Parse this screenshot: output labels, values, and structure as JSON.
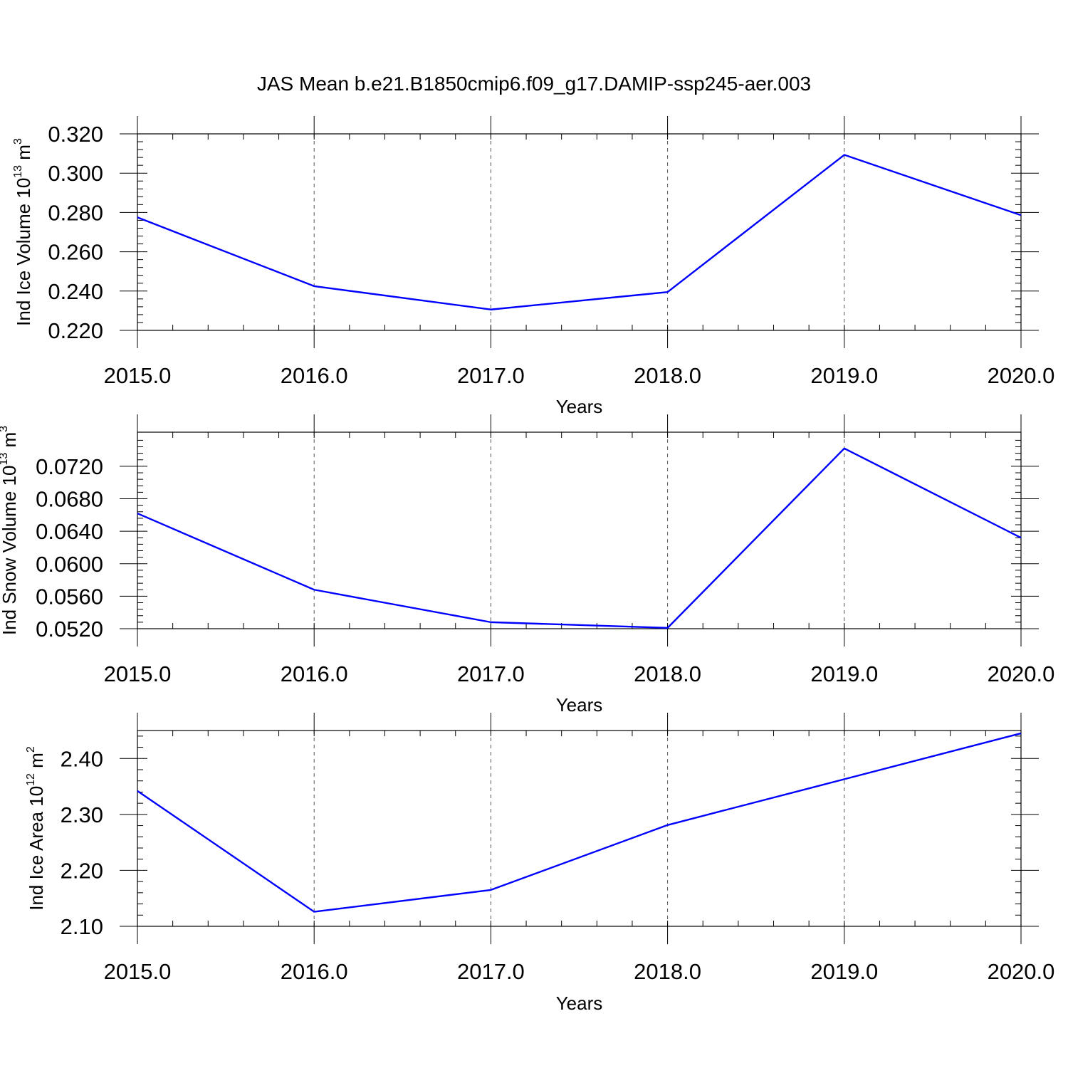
{
  "title": "JAS Mean b.e21.B1850cmip6.f09_g17.DAMIP-ssp245-aer.003",
  "line_color": "#0000ff",
  "chart_data": [
    {
      "type": "line",
      "xlabel": "Years",
      "ylabel_main": "Ind Ice Volume 10",
      "ylabel_exp": "13",
      "ylabel_unit": " m",
      "ylabel_unit_exp": "3",
      "xlim": [
        2015,
        2020
      ],
      "ylim": [
        0.22,
        0.32
      ],
      "x_ticks": [
        2015,
        2016,
        2017,
        2018,
        2019,
        2020
      ],
      "x_tick_labels": [
        "2015.0",
        "2016.0",
        "2017.0",
        "2018.0",
        "2019.0",
        "2020.0"
      ],
      "y_ticks": [
        0.22,
        0.24,
        0.26,
        0.28,
        0.3,
        0.32
      ],
      "y_tick_labels": [
        "0.220",
        "0.240",
        "0.260",
        "0.280",
        "0.300",
        "0.320"
      ],
      "y_minor_step": 0.004,
      "grid": "vertical dashed at major x ticks",
      "series": [
        {
          "x": [
            2015,
            2016,
            2017,
            2018,
            2019,
            2020
          ],
          "values": [
            0.2775,
            0.2425,
            0.2306,
            0.2395,
            0.3093,
            0.2786
          ]
        }
      ]
    },
    {
      "type": "line",
      "xlabel": "Years",
      "ylabel_main": "Ind Snow Volume 10",
      "ylabel_exp": "13",
      "ylabel_unit": " m",
      "ylabel_unit_exp": "3",
      "xlim": [
        2015,
        2020
      ],
      "ylim": [
        0.052,
        0.0762
      ],
      "x_ticks": [
        2015,
        2016,
        2017,
        2018,
        2019,
        2020
      ],
      "x_tick_labels": [
        "2015.0",
        "2016.0",
        "2017.0",
        "2018.0",
        "2019.0",
        "2020.0"
      ],
      "y_ticks": [
        0.052,
        0.056,
        0.06,
        0.064,
        0.068,
        0.072
      ],
      "y_tick_labels": [
        "0.0520",
        "0.0560",
        "0.0600",
        "0.0640",
        "0.0680",
        "0.0720"
      ],
      "y_minor_step": 0.0008,
      "grid": "vertical dashed at major x ticks",
      "series": [
        {
          "x": [
            2015,
            2016,
            2017,
            2018,
            2019,
            2020
          ],
          "values": [
            0.0662,
            0.0568,
            0.0528,
            0.0521,
            0.0742,
            0.0632
          ]
        }
      ]
    },
    {
      "type": "line",
      "xlabel": "Years",
      "ylabel_main": "Ind Ice Area 10",
      "ylabel_exp": "12",
      "ylabel_unit": " m",
      "ylabel_unit_exp": "2",
      "xlim": [
        2015,
        2020
      ],
      "ylim": [
        2.1,
        2.45
      ],
      "x_ticks": [
        2015,
        2016,
        2017,
        2018,
        2019,
        2020
      ],
      "x_tick_labels": [
        "2015.0",
        "2016.0",
        "2017.0",
        "2018.0",
        "2019.0",
        "2020.0"
      ],
      "y_ticks": [
        2.1,
        2.2,
        2.3,
        2.4
      ],
      "y_tick_labels": [
        "2.10",
        "2.20",
        "2.30",
        "2.40"
      ],
      "y_minor_step": 0.02,
      "grid": "vertical dashed at major x ticks",
      "series": [
        {
          "x": [
            2015,
            2016,
            2017,
            2018,
            2019,
            2020
          ],
          "values": [
            2.342,
            2.126,
            2.165,
            2.281,
            2.363,
            2.445
          ]
        }
      ]
    }
  ]
}
